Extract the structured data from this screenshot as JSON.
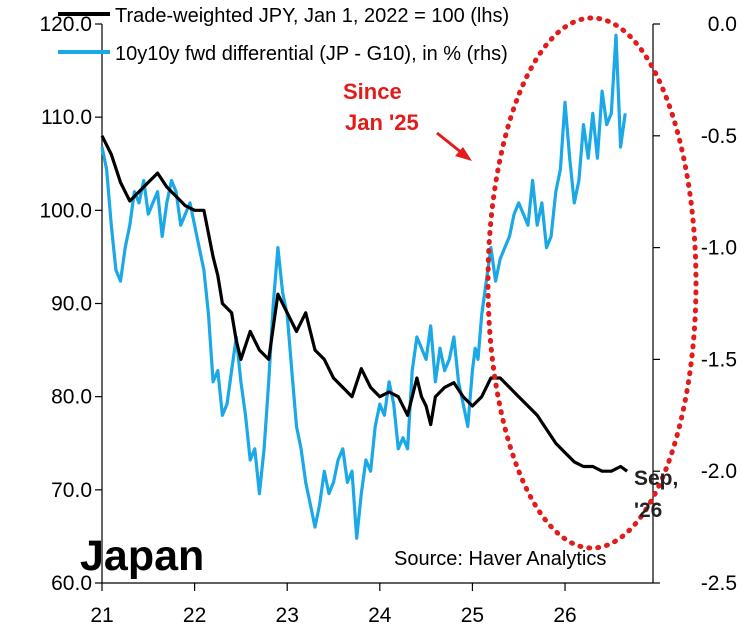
{
  "chart_data": {
    "type": "line",
    "title": "Japan",
    "source": "Source: Haver Analytics",
    "x_axis": {
      "range": [
        2021,
        2026.95
      ],
      "tick_values": [
        2021,
        2022,
        2023,
        2024,
        2025,
        2026
      ],
      "tick_labels": [
        "21",
        "22",
        "23",
        "24",
        "25",
        "26"
      ]
    },
    "y_left": {
      "range": [
        60,
        120
      ],
      "tick_values": [
        60,
        70,
        80,
        90,
        100,
        110,
        120
      ],
      "tick_labels": [
        "60.0",
        "70.0",
        "80.0",
        "90.0",
        "100.0",
        "110.0",
        "120.0"
      ]
    },
    "y_right": {
      "range": [
        -2.5,
        0
      ],
      "tick_values": [
        -2.5,
        -2.0,
        -1.5,
        -1.0,
        -0.5,
        0.0
      ],
      "tick_labels": [
        "-2.5",
        "-2.0",
        "-1.5",
        "-1.0",
        "-0.5",
        "0.0"
      ]
    },
    "series": [
      {
        "name": "Trade-weighted JPY, Jan 1, 2022 = 100 (lhs)",
        "axis": "left",
        "color": "#000000",
        "x": [
          2021.0,
          2021.1,
          2021.2,
          2021.3,
          2021.4,
          2021.5,
          2021.6,
          2021.7,
          2021.8,
          2021.9,
          2022.0,
          2022.1,
          2022.2,
          2022.25,
          2022.3,
          2022.4,
          2022.45,
          2022.5,
          2022.6,
          2022.7,
          2022.8,
          2022.9,
          2023.0,
          2023.1,
          2023.2,
          2023.3,
          2023.4,
          2023.5,
          2023.6,
          2023.7,
          2023.8,
          2023.9,
          2024.0,
          2024.1,
          2024.2,
          2024.3,
          2024.4,
          2024.45,
          2024.5,
          2024.55,
          2024.6,
          2024.7,
          2024.8,
          2024.9,
          2025.0,
          2025.1,
          2025.2,
          2025.3,
          2025.4,
          2025.5,
          2025.6,
          2025.7,
          2025.8,
          2025.9,
          2026.0,
          2026.1,
          2026.2,
          2026.3,
          2026.4,
          2026.5,
          2026.6,
          2026.67
        ],
        "y": [
          108,
          106,
          103,
          101,
          102,
          103,
          104,
          102.5,
          101.5,
          100.5,
          100,
          100,
          95,
          93,
          90,
          89,
          86,
          84,
          87,
          85,
          84,
          91,
          89,
          87,
          89,
          85,
          84,
          82,
          81,
          80,
          83,
          81,
          80,
          80.5,
          80,
          78,
          82,
          80,
          79,
          77,
          80,
          81,
          81.5,
          80,
          79,
          80,
          82,
          82,
          81,
          80,
          79,
          78,
          76.5,
          75,
          74,
          73,
          72.5,
          72.5,
          72,
          72,
          72.5,
          72
        ]
      },
      {
        "name": "10y10y fwd differential (JP - G10), in % (rhs)",
        "axis": "right",
        "color": "#1BA8E6",
        "x": [
          2021.0,
          2021.05,
          2021.1,
          2021.15,
          2021.2,
          2021.25,
          2021.3,
          2021.35,
          2021.4,
          2021.45,
          2021.5,
          2021.55,
          2021.6,
          2021.65,
          2021.7,
          2021.75,
          2021.8,
          2021.85,
          2021.9,
          2021.95,
          2022.0,
          2022.05,
          2022.1,
          2022.15,
          2022.2,
          2022.25,
          2022.3,
          2022.35,
          2022.4,
          2022.45,
          2022.5,
          2022.55,
          2022.6,
          2022.65,
          2022.7,
          2022.75,
          2022.8,
          2022.85,
          2022.9,
          2022.95,
          2023.0,
          2023.05,
          2023.1,
          2023.15,
          2023.2,
          2023.25,
          2023.3,
          2023.35,
          2023.4,
          2023.45,
          2023.5,
          2023.55,
          2023.6,
          2023.65,
          2023.7,
          2023.75,
          2023.8,
          2023.85,
          2023.9,
          2023.95,
          2024.0,
          2024.05,
          2024.1,
          2024.15,
          2024.2,
          2024.25,
          2024.3,
          2024.35,
          2024.4,
          2024.45,
          2024.5,
          2024.55,
          2024.6,
          2024.65,
          2024.7,
          2024.75,
          2024.8,
          2024.85,
          2024.9,
          2024.95,
          2025.0,
          2025.03,
          2025.06,
          2025.1,
          2025.15,
          2025.2,
          2025.25,
          2025.3,
          2025.35,
          2025.4,
          2025.45,
          2025.5,
          2025.55,
          2025.6,
          2025.65,
          2025.7,
          2025.75,
          2025.8,
          2025.85,
          2025.9,
          2025.95,
          2026.0,
          2026.05,
          2026.1,
          2026.15,
          2026.2,
          2026.25,
          2026.3,
          2026.35,
          2026.4,
          2026.45,
          2026.5,
          2026.55,
          2026.6,
          2026.65
        ],
        "y": [
          -0.55,
          -0.65,
          -0.9,
          -1.1,
          -1.15,
          -1.0,
          -0.9,
          -0.75,
          -0.8,
          -0.7,
          -0.85,
          -0.8,
          -0.75,
          -0.95,
          -0.8,
          -0.7,
          -0.75,
          -0.9,
          -0.85,
          -0.8,
          -0.9,
          -1.0,
          -1.1,
          -1.3,
          -1.6,
          -1.55,
          -1.75,
          -1.7,
          -1.55,
          -1.4,
          -1.6,
          -1.75,
          -1.95,
          -1.9,
          -2.1,
          -1.9,
          -1.6,
          -1.25,
          -1.0,
          -1.2,
          -1.3,
          -1.55,
          -1.8,
          -1.9,
          -2.05,
          -2.15,
          -2.25,
          -2.15,
          -2.0,
          -2.1,
          -2.05,
          -1.95,
          -1.9,
          -2.05,
          -2.0,
          -2.3,
          -2.1,
          -1.95,
          -2.0,
          -1.8,
          -1.7,
          -1.75,
          -1.6,
          -1.7,
          -1.9,
          -1.85,
          -1.9,
          -1.55,
          -1.4,
          -1.45,
          -1.5,
          -1.35,
          -1.6,
          -1.45,
          -1.55,
          -1.5,
          -1.4,
          -1.6,
          -1.7,
          -1.8,
          -1.55,
          -1.45,
          -1.5,
          -1.3,
          -1.15,
          -1.0,
          -1.15,
          -1.05,
          -1.0,
          -0.95,
          -0.85,
          -0.8,
          -0.85,
          -0.9,
          -0.7,
          -0.9,
          -0.8,
          -1.0,
          -0.95,
          -0.75,
          -0.65,
          -0.35,
          -0.6,
          -0.8,
          -0.7,
          -0.45,
          -0.6,
          -0.4,
          -0.6,
          -0.3,
          -0.45,
          -0.4,
          -0.05,
          -0.55,
          -0.4
        ]
      }
    ],
    "annotations": [
      {
        "id": "since",
        "lines": [
          "Since",
          "Jan '25"
        ],
        "color": "#E21B1B"
      },
      {
        "id": "end",
        "lines": [
          "Sep,",
          "'26"
        ],
        "color": "#222222"
      }
    ]
  }
}
